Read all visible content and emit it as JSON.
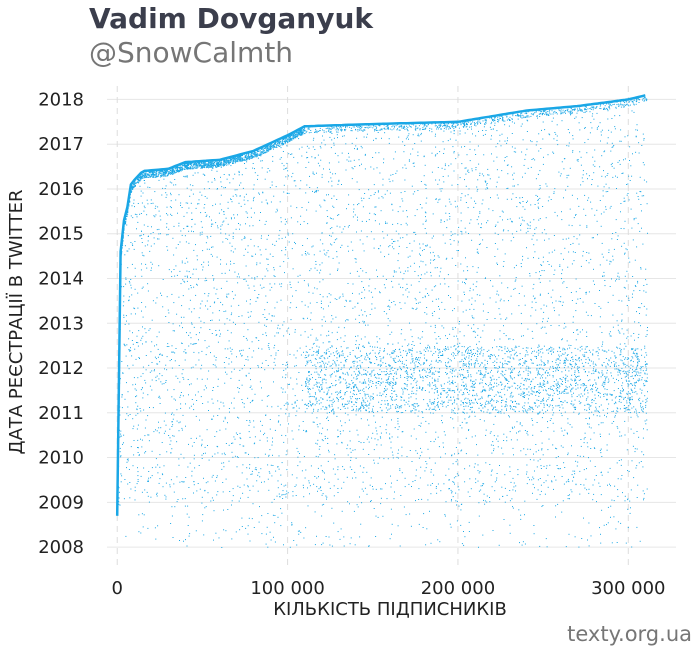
{
  "header": {
    "title": "Vadim Dovganyuk",
    "subtitle": "@SnowCalmth"
  },
  "footer": {
    "credit": "texty.org.ua"
  },
  "chart_data": {
    "type": "scatter",
    "title": "",
    "xlabel": "КІЛЬКІСТЬ ПІДПИСНИКІВ",
    "ylabel": "ДАТА РЕЄСТРАЦІЇ В TWITTER",
    "xlim": [
      -6000,
      328000
    ],
    "ylim": [
      2007.6,
      2018.3
    ],
    "x_ticks": [
      0,
      100000,
      200000,
      300000
    ],
    "x_tick_labels": [
      "0",
      "100 000",
      "200 000",
      "300 000"
    ],
    "y_ticks": [
      2008,
      2009,
      2010,
      2011,
      2012,
      2013,
      2014,
      2015,
      2016,
      2017,
      2018
    ],
    "y_tick_labels": [
      "2008",
      "2009",
      "2010",
      "2011",
      "2012",
      "2013",
      "2014",
      "2015",
      "2016",
      "2017",
      "2018"
    ],
    "grid": true,
    "point_color": "#1aa7e6",
    "x_max": 311000,
    "registration_front": [
      [
        0,
        2008.7
      ],
      [
        2000,
        2014.6
      ],
      [
        4000,
        2015.3
      ],
      [
        6000,
        2015.6
      ],
      [
        8000,
        2016.1
      ],
      [
        10000,
        2016.2
      ],
      [
        15000,
        2016.4
      ],
      [
        30000,
        2016.45
      ],
      [
        40000,
        2016.6
      ],
      [
        60000,
        2016.65
      ],
      [
        80000,
        2016.85
      ],
      [
        100000,
        2017.2
      ],
      [
        110000,
        2017.4
      ],
      [
        150000,
        2017.45
      ],
      [
        200000,
        2017.5
      ],
      [
        240000,
        2017.75
      ],
      [
        270000,
        2017.85
      ],
      [
        300000,
        2018.0
      ],
      [
        311000,
        2018.1
      ]
    ],
    "cluster": {
      "x_from": 110000,
      "x_to": 311000,
      "y_from": 2011,
      "y_to": 2012.5
    }
  }
}
